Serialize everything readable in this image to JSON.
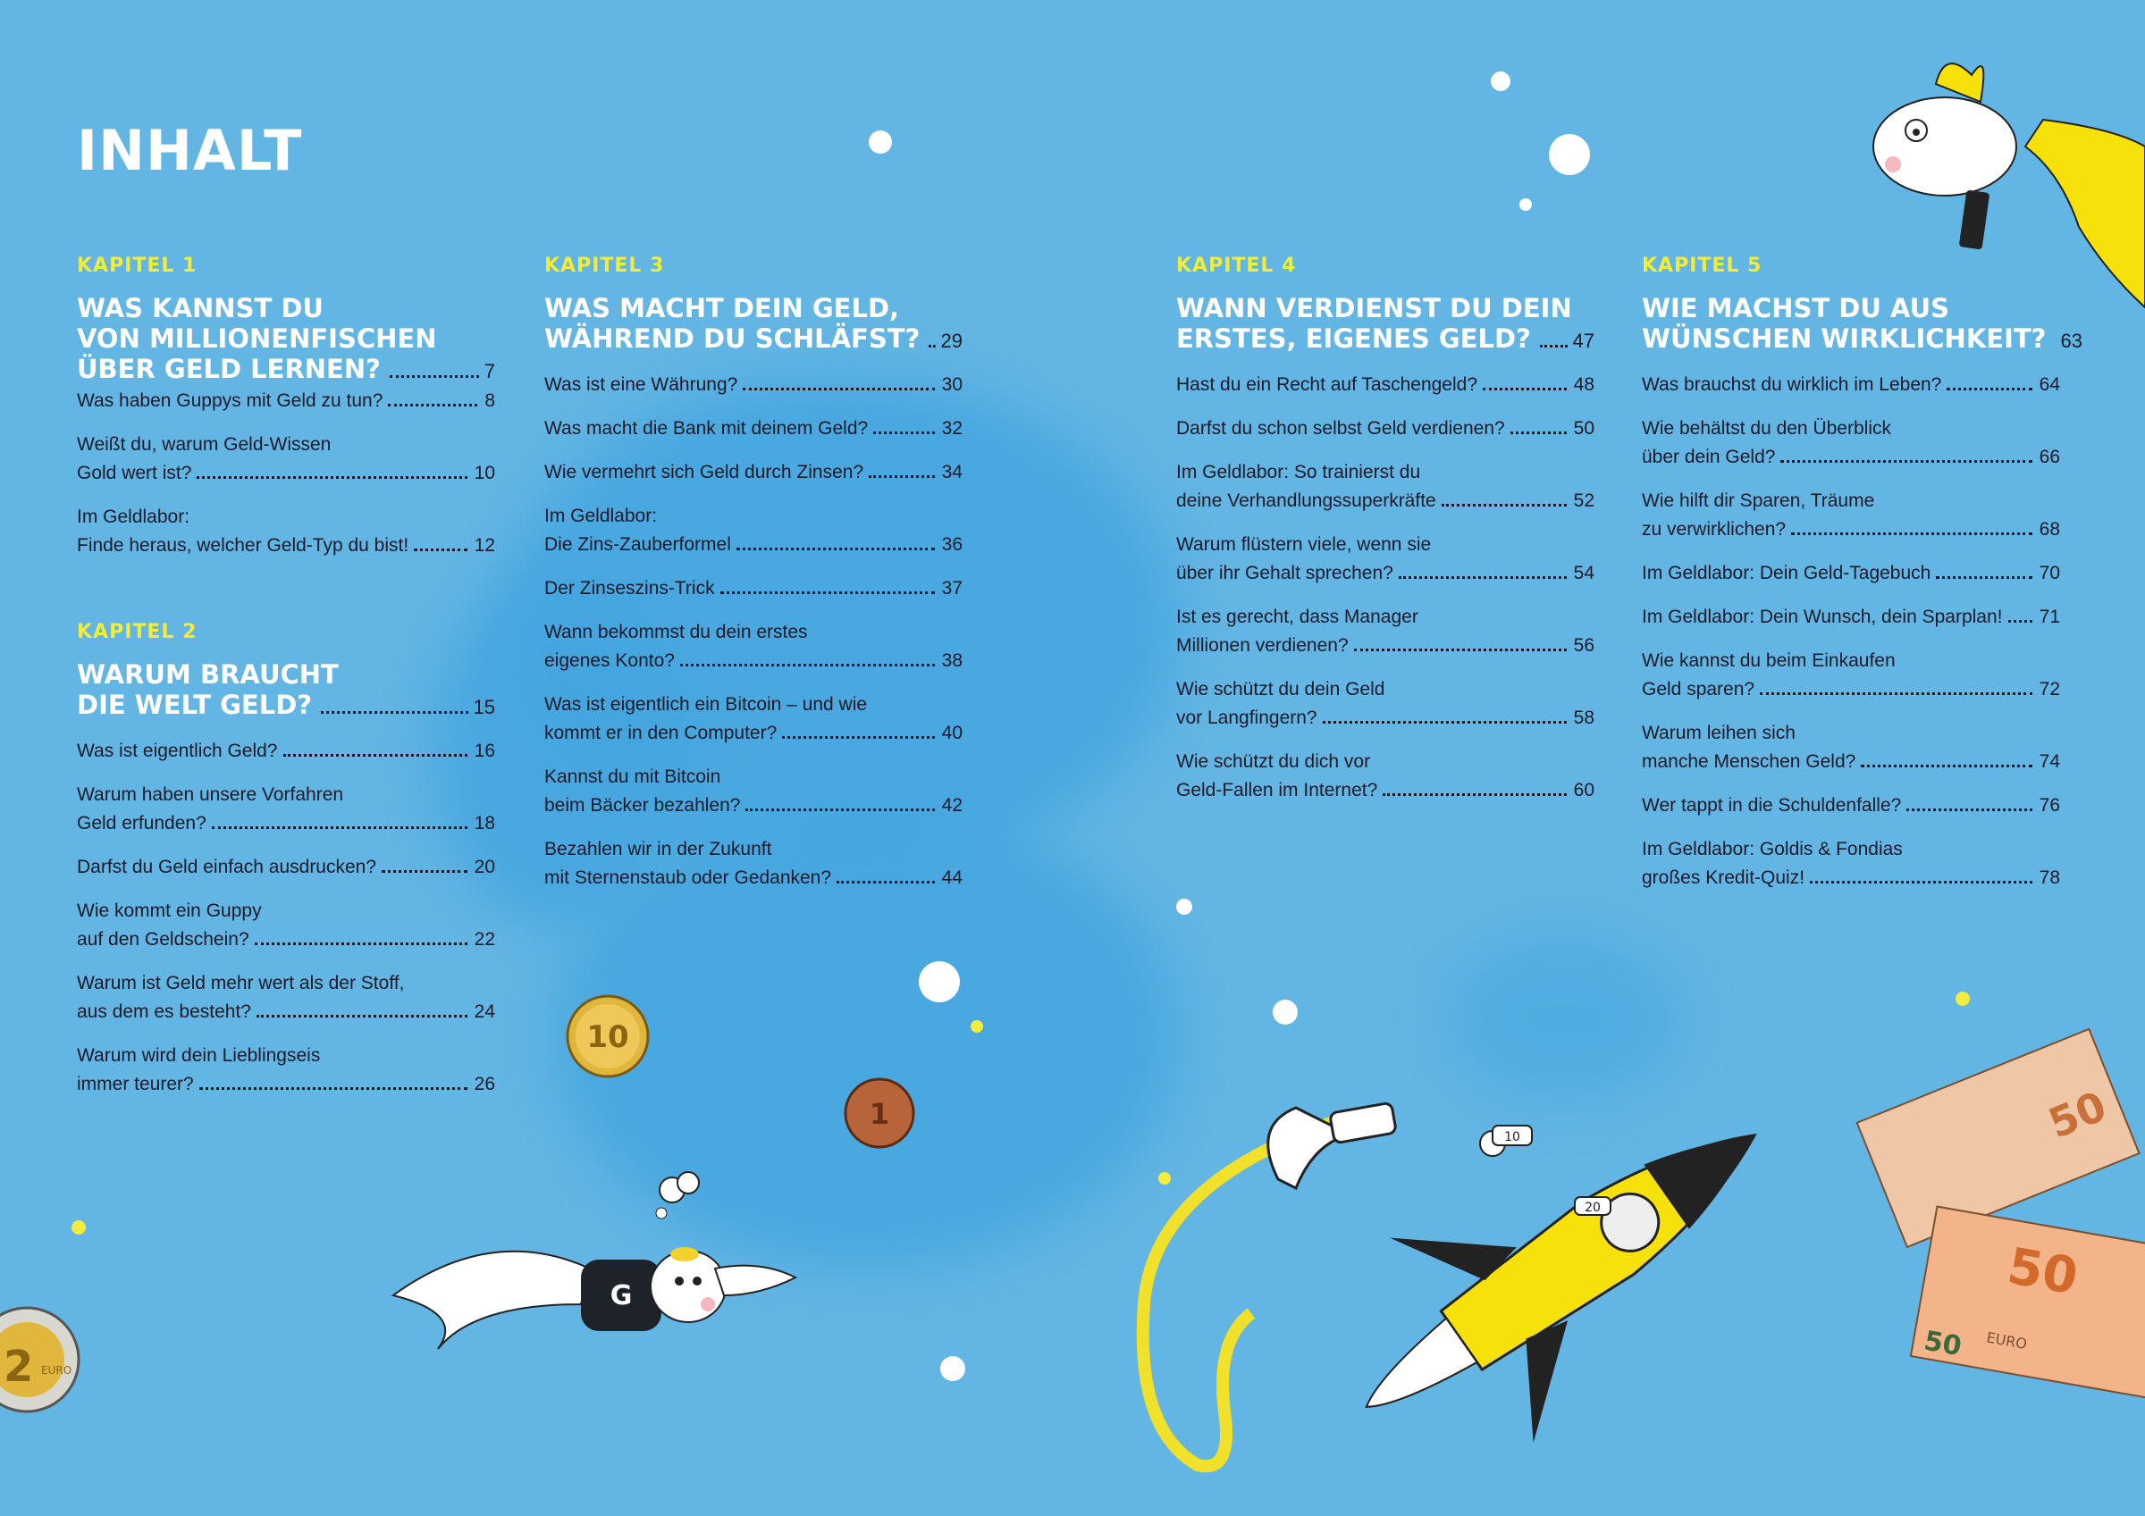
{
  "title": "INHALT",
  "chapters": [
    {
      "label": "KAPITEL 1",
      "heading": [
        "WAS KANNST DU",
        "VON MILLIONENFISCHEN",
        "ÜBER GELD LERNEN?"
      ],
      "page": "7",
      "entries": [
        {
          "lines": [
            "Was haben Guppys mit Geld zu tun?"
          ],
          "page": "8"
        },
        {
          "lines": [
            "Weißt du, warum Geld-Wissen",
            "Gold wert ist?"
          ],
          "page": "10"
        },
        {
          "lines": [
            "Im Geldlabor:",
            "Finde heraus, welcher Geld-Typ du bist!"
          ],
          "page": "12"
        }
      ]
    },
    {
      "label": "KAPITEL 2",
      "heading": [
        "WARUM BRAUCHT",
        "DIE WELT GELD?"
      ],
      "page": "15",
      "entries": [
        {
          "lines": [
            "Was ist eigentlich Geld?"
          ],
          "page": "16"
        },
        {
          "lines": [
            "Warum haben unsere Vorfahren",
            "Geld erfunden?"
          ],
          "page": "18"
        },
        {
          "lines": [
            "Darfst du Geld einfach ausdrucken?"
          ],
          "page": "20"
        },
        {
          "lines": [
            "Wie kommt ein Guppy",
            "auf den Geldschein?"
          ],
          "page": "22"
        },
        {
          "lines": [
            "Warum ist Geld mehr wert als der Stoff,",
            "aus dem es besteht?"
          ],
          "page": "24"
        },
        {
          "lines": [
            "Warum wird dein Lieblingseis",
            "immer teurer?"
          ],
          "page": "26"
        }
      ]
    },
    {
      "label": "KAPITEL 3",
      "heading": [
        "WAS MACHT DEIN GELD,",
        "WÄHREND DU SCHLÄFST?"
      ],
      "page": "29",
      "entries": [
        {
          "lines": [
            "Was ist eine Währung?"
          ],
          "page": "30"
        },
        {
          "lines": [
            "Was macht die Bank mit deinem Geld?"
          ],
          "page": "32"
        },
        {
          "lines": [
            "Wie vermehrt sich Geld durch Zinsen?"
          ],
          "page": "34"
        },
        {
          "lines": [
            "Im Geldlabor:"
          ],
          "page": ""
        },
        {
          "lines": [
            "Die Zins-Zauberformel"
          ],
          "page": "36"
        },
        {
          "lines": [
            "Der Zinseszins-Trick"
          ],
          "page": "37"
        },
        {
          "lines": [
            "Wann bekommst du dein erstes",
            "eigenes Konto?"
          ],
          "page": "38"
        },
        {
          "lines": [
            "Was ist eigentlich ein Bitcoin – und wie",
            "kommt er in den Computer?"
          ],
          "page": "40"
        },
        {
          "lines": [
            "Kannst du mit Bitcoin",
            "beim Bäcker bezahlen?"
          ],
          "page": "42"
        },
        {
          "lines": [
            "Bezahlen wir in der Zukunft",
            "mit Sternenstaub oder Gedanken?"
          ],
          "page": "44"
        }
      ]
    },
    {
      "label": "KAPITEL 4",
      "heading": [
        "WANN VERDIENST DU DEIN",
        "ERSTES, EIGENES GELD?"
      ],
      "page": "47",
      "entries": [
        {
          "lines": [
            "Hast du ein Recht auf Taschengeld?"
          ],
          "page": "48"
        },
        {
          "lines": [
            "Darfst du schon selbst Geld verdienen?"
          ],
          "page": "50"
        },
        {
          "lines": [
            "Im Geldlabor: So trainierst du",
            "deine Verhandlungssuperkräfte"
          ],
          "page": "52"
        },
        {
          "lines": [
            "Warum flüstern viele, wenn sie",
            "über ihr Gehalt sprechen?"
          ],
          "page": "54"
        },
        {
          "lines": [
            "Ist es gerecht, dass Manager",
            "Millionen verdienen?"
          ],
          "page": "56"
        },
        {
          "lines": [
            "Wie schützt du dein Geld",
            "vor Langfingern?"
          ],
          "page": "58"
        },
        {
          "lines": [
            "Wie schützt du dich vor",
            "Geld-Fallen im Internet?"
          ],
          "page": "60"
        }
      ]
    },
    {
      "label": "KAPITEL 5",
      "heading": [
        "WIE MACHST DU AUS",
        "WÜNSCHEN WIRKLICHKEIT?"
      ],
      "page": "63",
      "entries": [
        {
          "lines": [
            "Was brauchst du wirklich im Leben?"
          ],
          "page": "64"
        },
        {
          "lines": [
            "Wie behältst du den Überblick",
            "über dein Geld?"
          ],
          "page": "66"
        },
        {
          "lines": [
            "Wie hilft dir Sparen, Träume",
            "zu verwirklichen?"
          ],
          "page": "68"
        },
        {
          "lines": [
            "Im Geldlabor: Dein Geld-Tagebuch"
          ],
          "page": "70"
        },
        {
          "lines": [
            "Im Geldlabor: Dein Wunsch, dein Sparplan!"
          ],
          "page": "71"
        },
        {
          "lines": [
            "Wie kannst du beim Einkaufen",
            "Geld sparen?"
          ],
          "page": "72"
        },
        {
          "lines": [
            "Warum leihen sich",
            "manche Menschen Geld?"
          ],
          "page": "74"
        },
        {
          "lines": [
            "Wer tappt in die Schuldenfalle?"
          ],
          "page": "76"
        },
        {
          "lines": [
            "Im Geldlabor: Goldis & Fondias",
            "großes Kredit-Quiz!"
          ],
          "page": "78"
        }
      ]
    }
  ],
  "illustrations": {
    "coin_10": "10",
    "coin_1": "1",
    "coin_2": "2",
    "coin_2_unit": "EURO",
    "fish_sweater_letter": "G",
    "banknote_value": "50",
    "banknote_unit": "EURO",
    "rocket_coin": "10",
    "rocket_coin_2": "20"
  },
  "colors": {
    "background": "#63b5e3",
    "chapter_label": "#f2ec3a",
    "heading": "#ffffff",
    "text": "#1a1a2a",
    "watercolor": "#45a6df"
  }
}
